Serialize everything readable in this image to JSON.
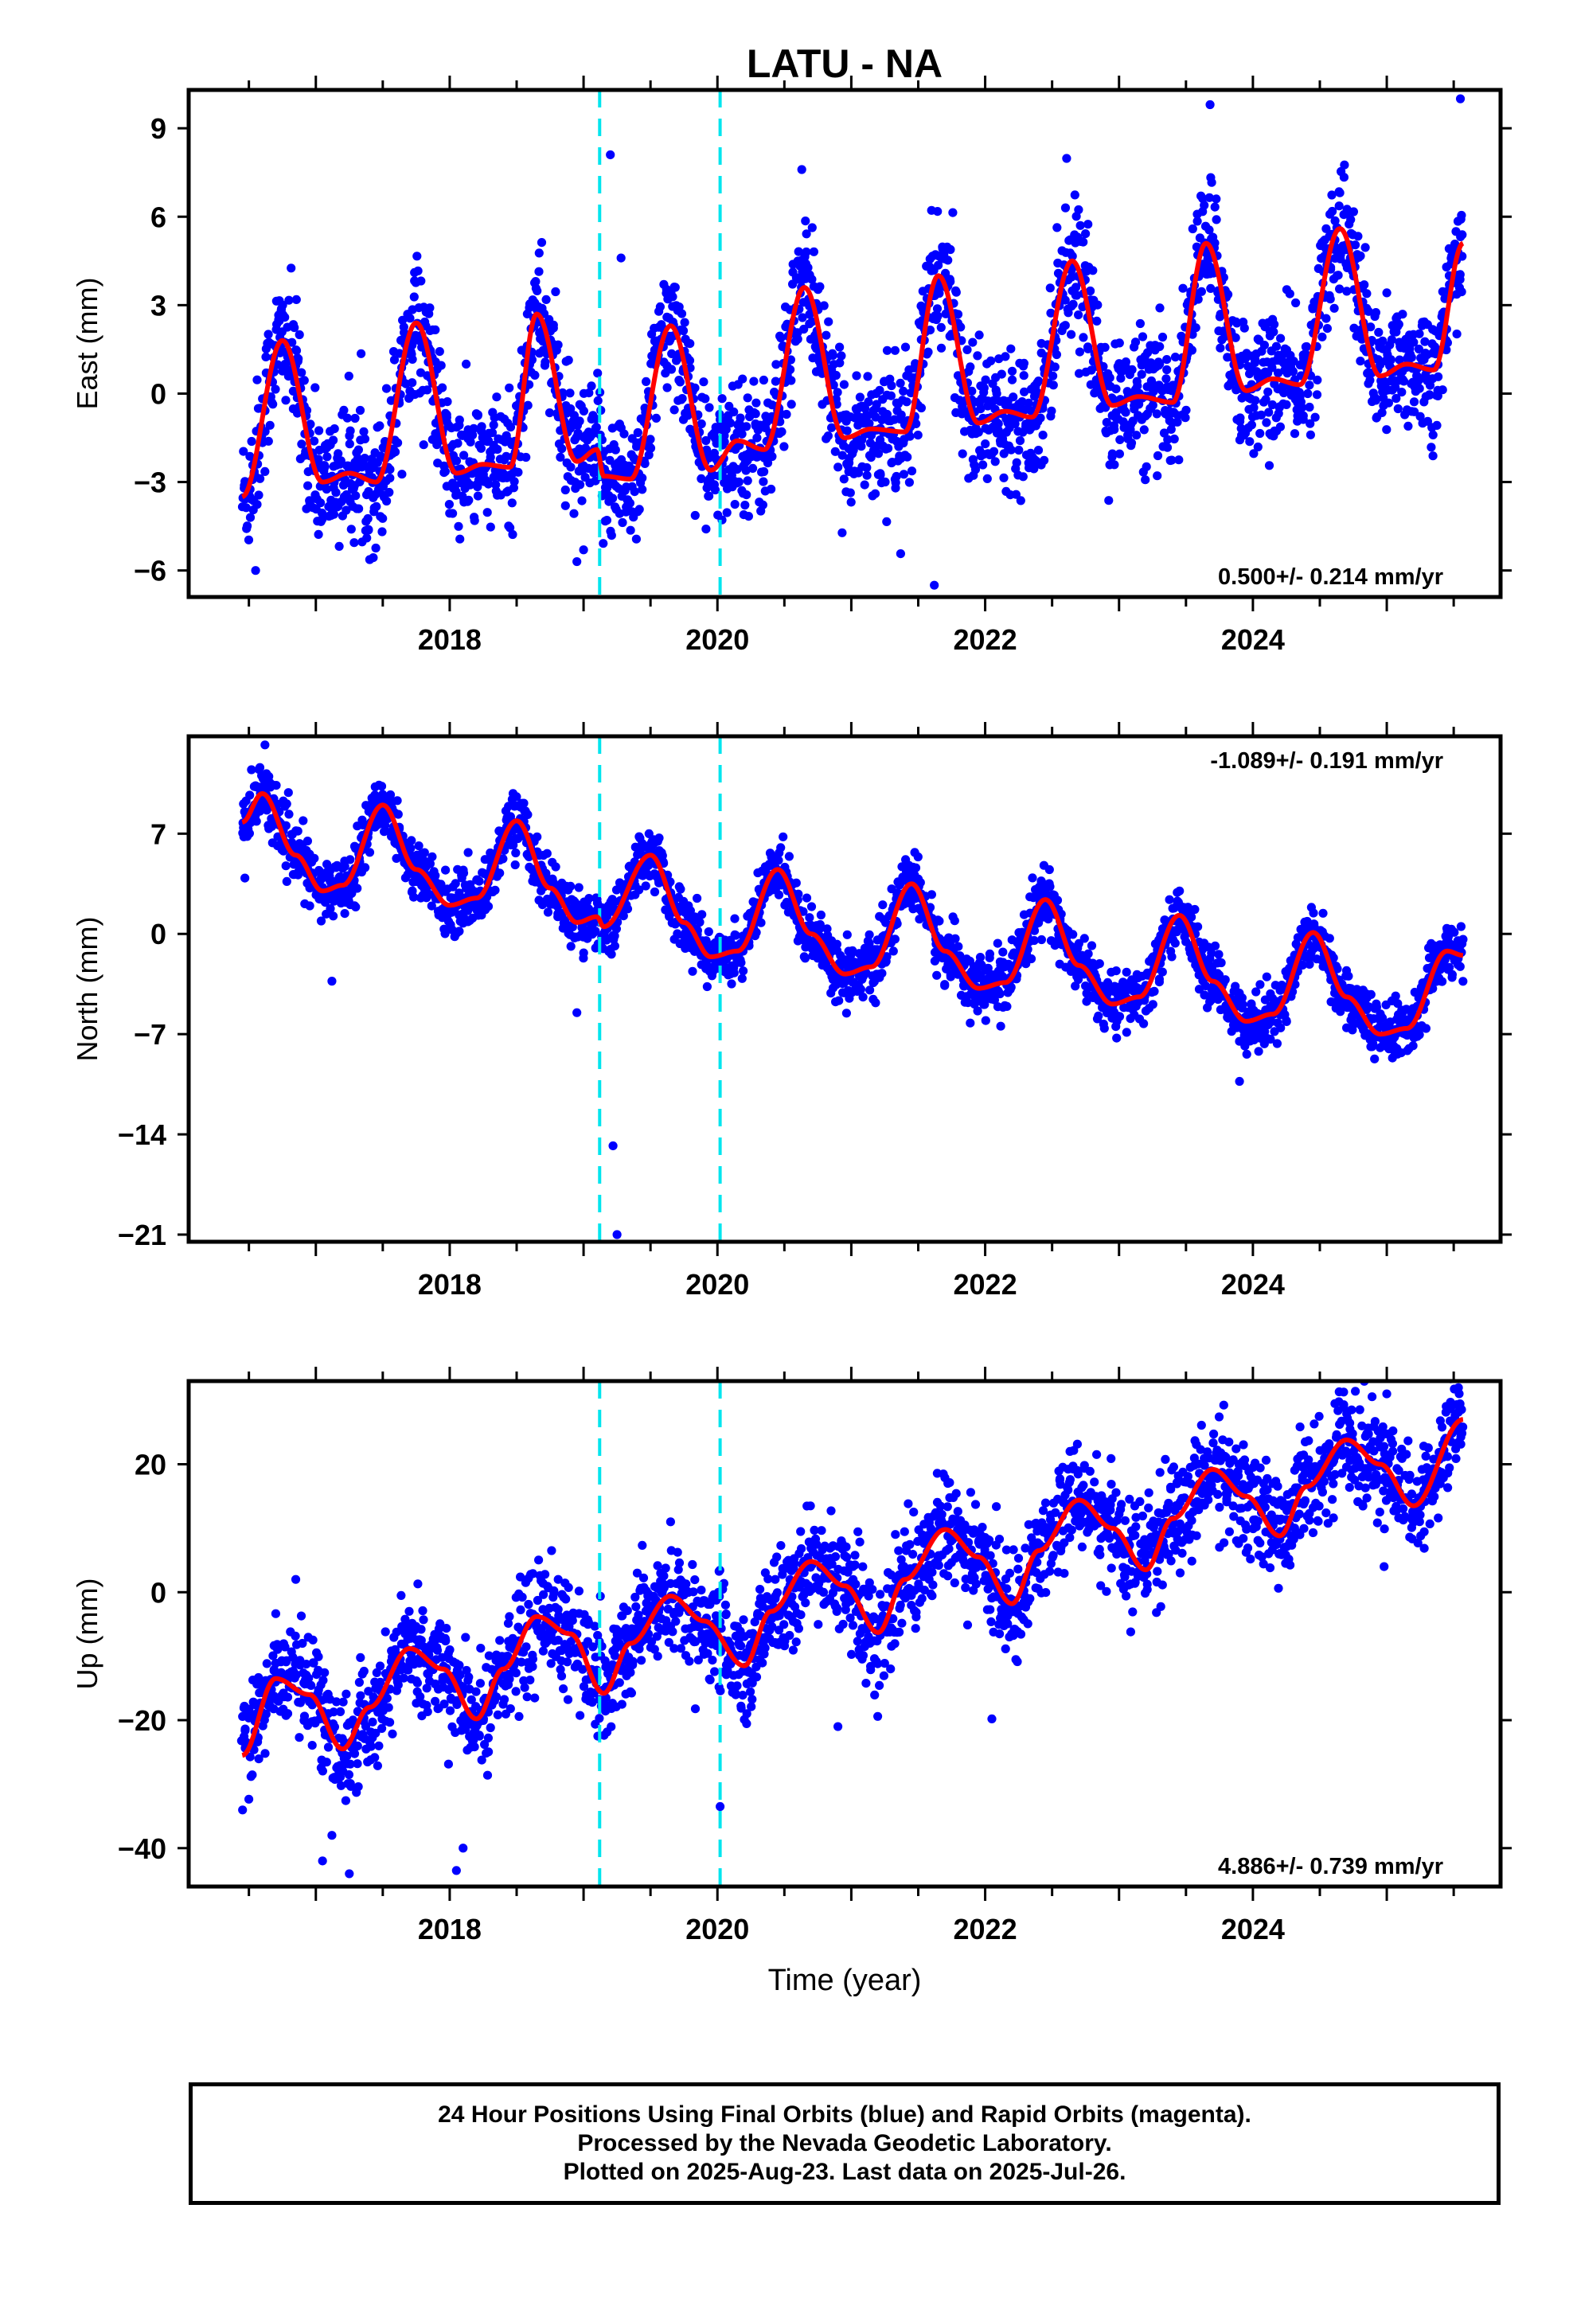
{
  "chart_title": "LATU - NA",
  "x_axis_label": "Time (year)",
  "footer": {
    "line1": "24 Hour Positions Using Final Orbits (blue) and Rapid Orbits (magenta).",
    "line2": "Processed by the Nevada Geodetic Laboratory.",
    "line3": "Plotted on 2025-Aug-23. Last data on 2025-Jul-26."
  },
  "colors": {
    "points": "#0000ff",
    "model": "#ff0000",
    "event_lines": "#00e5ee"
  },
  "chart_data": [
    {
      "type": "scatter",
      "panel": "east",
      "ylabel": "East (mm)",
      "rate_label": "0.500+/- 0.214 mm/yr",
      "xlim": [
        2016.05,
        2025.85
      ],
      "ylim": [
        -6.9,
        10.3
      ],
      "yticks": [
        -6,
        -3,
        0,
        3,
        6,
        9
      ],
      "xticks": [
        2018,
        2020,
        2022,
        2024
      ],
      "event_lines": [
        2019.12,
        2020.02
      ],
      "data_start": 2016.45,
      "data_end": 2025.57,
      "trend_rate": 0.5,
      "model_knots": [
        [
          2016.45,
          -3.5
        ],
        [
          2016.75,
          1.8
        ],
        [
          2017.05,
          -3.0
        ],
        [
          2017.25,
          -2.7
        ],
        [
          2017.45,
          -3.0
        ],
        [
          2017.75,
          2.4
        ],
        [
          2018.05,
          -2.7
        ],
        [
          2018.25,
          -2.4
        ],
        [
          2018.45,
          -2.5
        ],
        [
          2018.65,
          2.7
        ],
        [
          2018.95,
          -2.3
        ],
        [
          2019.1,
          -1.9
        ],
        [
          2019.15,
          -2.8
        ],
        [
          2019.35,
          -2.9
        ],
        [
          2019.65,
          2.3
        ],
        [
          2019.95,
          -2.6
        ],
        [
          2020.15,
          -1.6
        ],
        [
          2020.35,
          -1.9
        ],
        [
          2020.65,
          3.6
        ],
        [
          2020.95,
          -1.5
        ],
        [
          2021.15,
          -1.2
        ],
        [
          2021.4,
          -1.3
        ],
        [
          2021.65,
          4.0
        ],
        [
          2021.95,
          -1.0
        ],
        [
          2022.15,
          -0.6
        ],
        [
          2022.35,
          -0.8
        ],
        [
          2022.65,
          4.5
        ],
        [
          2022.95,
          -0.4
        ],
        [
          2023.15,
          -0.1
        ],
        [
          2023.4,
          -0.3
        ],
        [
          2023.65,
          5.1
        ],
        [
          2023.95,
          0.1
        ],
        [
          2024.15,
          0.5
        ],
        [
          2024.35,
          0.3
        ],
        [
          2024.65,
          5.6
        ],
        [
          2024.95,
          0.6
        ],
        [
          2025.15,
          1.0
        ],
        [
          2025.35,
          0.8
        ],
        [
          2025.57,
          5.1
        ]
      ],
      "scatter_sigma": 1.1,
      "outliers": [
        [
          2019.2,
          8.1
        ],
        [
          2019.28,
          4.6
        ],
        [
          2020.63,
          7.6
        ],
        [
          2021.62,
          -6.5
        ],
        [
          2023.68,
          9.8
        ],
        [
          2025.55,
          10.0
        ],
        [
          2018.95,
          -5.7
        ],
        [
          2019.0,
          -5.3
        ],
        [
          2016.55,
          -6.0
        ],
        [
          2022.6,
          6.3
        ]
      ]
    },
    {
      "type": "scatter",
      "panel": "north",
      "ylabel": "North (mm)",
      "rate_label": "-1.089+/- 0.191 mm/yr",
      "xlim": [
        2016.05,
        2025.85
      ],
      "ylim": [
        -21.5,
        13.8
      ],
      "yticks": [
        -21,
        -14,
        -7,
        0,
        7
      ],
      "xticks": [
        2018,
        2020,
        2022,
        2024
      ],
      "event_lines": [
        2019.12,
        2020.02
      ],
      "data_start": 2016.45,
      "data_end": 2025.57,
      "trend_rate": -1.089,
      "model_knots": [
        [
          2016.45,
          7.8
        ],
        [
          2016.6,
          9.8
        ],
        [
          2016.85,
          5.5
        ],
        [
          2017.05,
          3.0
        ],
        [
          2017.2,
          3.4
        ],
        [
          2017.5,
          9.0
        ],
        [
          2017.75,
          4.5
        ],
        [
          2018.0,
          2.0
        ],
        [
          2018.2,
          2.5
        ],
        [
          2018.5,
          7.9
        ],
        [
          2018.75,
          3.2
        ],
        [
          2018.95,
          0.8
        ],
        [
          2019.1,
          1.2
        ],
        [
          2019.15,
          0.5
        ],
        [
          2019.5,
          5.5
        ],
        [
          2019.75,
          0.8
        ],
        [
          2019.95,
          -1.6
        ],
        [
          2020.15,
          -1.2
        ],
        [
          2020.45,
          4.5
        ],
        [
          2020.7,
          0.0
        ],
        [
          2020.95,
          -2.8
        ],
        [
          2021.15,
          -2.3
        ],
        [
          2021.45,
          3.5
        ],
        [
          2021.7,
          -1.2
        ],
        [
          2021.95,
          -3.8
        ],
        [
          2022.15,
          -3.4
        ],
        [
          2022.45,
          2.4
        ],
        [
          2022.7,
          -2.2
        ],
        [
          2022.95,
          -4.9
        ],
        [
          2023.15,
          -4.4
        ],
        [
          2023.45,
          1.3
        ],
        [
          2023.7,
          -3.3
        ],
        [
          2023.95,
          -6.1
        ],
        [
          2024.15,
          -5.6
        ],
        [
          2024.45,
          0.1
        ],
        [
          2024.7,
          -4.4
        ],
        [
          2024.95,
          -7.0
        ],
        [
          2025.15,
          -6.6
        ],
        [
          2025.45,
          -1.2
        ],
        [
          2025.57,
          -1.5
        ]
      ],
      "scatter_sigma": 1.0,
      "outliers": [
        [
          2016.47,
          3.9
        ],
        [
          2017.12,
          -3.3
        ],
        [
          2019.22,
          -14.8
        ],
        [
          2019.25,
          -21.0
        ],
        [
          2018.95,
          -5.5
        ],
        [
          2023.9,
          -10.3
        ],
        [
          2016.62,
          13.2
        ]
      ]
    },
    {
      "type": "scatter",
      "panel": "up",
      "ylabel": "Up (mm)",
      "rate_label": "4.886+/- 0.739 mm/yr",
      "xlim": [
        2016.05,
        2025.85
      ],
      "ylim": [
        -46,
        33
      ],
      "yticks": [
        -40,
        -20,
        0,
        20
      ],
      "xticks": [
        2018,
        2020,
        2022,
        2024
      ],
      "event_lines": [
        2019.12,
        2020.02
      ],
      "data_start": 2016.45,
      "data_end": 2025.57,
      "trend_rate": 4.886,
      "model_knots": [
        [
          2016.45,
          -25.5
        ],
        [
          2016.7,
          -13.5
        ],
        [
          2016.95,
          -16.0
        ],
        [
          2017.2,
          -24.5
        ],
        [
          2017.4,
          -18.0
        ],
        [
          2017.7,
          -8.8
        ],
        [
          2017.95,
          -12.0
        ],
        [
          2018.2,
          -19.8
        ],
        [
          2018.4,
          -12.0
        ],
        [
          2018.65,
          -3.8
        ],
        [
          2018.9,
          -6.5
        ],
        [
          2019.15,
          -15.8
        ],
        [
          2019.35,
          -8.0
        ],
        [
          2019.65,
          -0.6
        ],
        [
          2019.9,
          -4.5
        ],
        [
          2020.2,
          -11.5
        ],
        [
          2020.4,
          -3.0
        ],
        [
          2020.7,
          4.8
        ],
        [
          2020.95,
          1.0
        ],
        [
          2021.2,
          -6.3
        ],
        [
          2021.4,
          2.0
        ],
        [
          2021.7,
          9.8
        ],
        [
          2021.95,
          5.5
        ],
        [
          2022.2,
          -1.8
        ],
        [
          2022.4,
          6.5
        ],
        [
          2022.7,
          14.4
        ],
        [
          2022.95,
          10.0
        ],
        [
          2023.2,
          3.5
        ],
        [
          2023.4,
          11.5
        ],
        [
          2023.7,
          19.2
        ],
        [
          2023.95,
          15.0
        ],
        [
          2024.2,
          8.8
        ],
        [
          2024.4,
          16.5
        ],
        [
          2024.7,
          23.8
        ],
        [
          2024.95,
          20.0
        ],
        [
          2025.2,
          13.5
        ],
        [
          2025.57,
          27.0
        ]
      ],
      "scatter_sigma": 4.2,
      "outliers": [
        [
          2017.05,
          -42
        ],
        [
          2017.25,
          -44
        ],
        [
          2018.05,
          -43.5
        ],
        [
          2020.02,
          -33.5
        ],
        [
          2020.9,
          -21
        ],
        [
          2022.05,
          -19.8
        ],
        [
          2017.12,
          -38
        ],
        [
          2018.1,
          -40
        ],
        [
          2016.85,
          2.0
        ],
        [
          2024.98,
          4.0
        ],
        [
          2019.65,
          11
        ],
        [
          2025.0,
          31
        ]
      ]
    }
  ]
}
